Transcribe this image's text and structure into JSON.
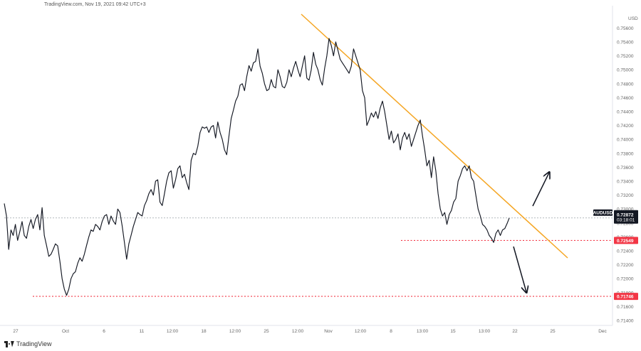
{
  "header": {
    "source_text": "TradingView.com, Nov 19, 2021 09:42 UTC+3"
  },
  "footer": {
    "brand": "TradingView"
  },
  "chart_data": {
    "type": "line",
    "symbol": "AUDUSD",
    "currency_label": "USD",
    "ylim": [
      0.714,
      0.7566
    ],
    "y_ticks": [
      "0.75600",
      "0.75400",
      "0.75200",
      "0.75000",
      "0.74800",
      "0.74600",
      "0.74400",
      "0.74200",
      "0.74000",
      "0.73800",
      "0.73600",
      "0.73400",
      "0.73200",
      "0.73000",
      "0.72800",
      "0.72600",
      "0.72400",
      "0.72200",
      "0.72000",
      "0.71800",
      "0.71600",
      "0.71400"
    ],
    "x_ticks": [
      "27",
      "Oct",
      "6",
      "11",
      "12:00",
      "18",
      "12:00",
      "25",
      "12:00",
      "Nov",
      "12:00",
      "8",
      "13:00",
      "15",
      "13:00",
      "22",
      "25",
      "Dec"
    ],
    "price_labels": [
      {
        "text": "AUDUSD",
        "color": "#131722"
      },
      {
        "text": "0.72872",
        "color": "#131722"
      },
      {
        "text": "03:18:01",
        "color": "#131722"
      },
      {
        "text": "0.72549",
        "color": "#f23645"
      },
      {
        "text": "0.71746",
        "color": "#f23645"
      }
    ],
    "levels": [
      {
        "value": 0.72872,
        "style": "dotted",
        "color": "#9aa0a6"
      },
      {
        "value": 0.72549,
        "style": "dotted",
        "color": "#f23645"
      },
      {
        "value": 0.71746,
        "style": "dotted",
        "color": "#f23645"
      }
    ],
    "trendline_color": "#f5a623",
    "series": [
      {
        "color": "#131722",
        "values": [
          0.7308,
          0.729,
          0.7242,
          0.727,
          0.7262,
          0.7278,
          0.7255,
          0.7268,
          0.7282,
          0.7262,
          0.7258,
          0.7275,
          0.7285,
          0.7272,
          0.7285,
          0.7292,
          0.727,
          0.7302,
          0.7262,
          0.7248,
          0.7232,
          0.7235,
          0.7242,
          0.725,
          0.7247,
          0.7225,
          0.72,
          0.7185,
          0.7176,
          0.7185,
          0.72,
          0.7207,
          0.721,
          0.7222,
          0.723,
          0.7225,
          0.7235,
          0.7248,
          0.726,
          0.727,
          0.7268,
          0.7278,
          0.7275,
          0.727,
          0.7282,
          0.729,
          0.7292,
          0.7278,
          0.729,
          0.7283,
          0.7278,
          0.73,
          0.7295,
          0.7276,
          0.7252,
          0.7228,
          0.725,
          0.7262,
          0.7275,
          0.7285,
          0.7295,
          0.7292,
          0.729,
          0.7305,
          0.7312,
          0.7322,
          0.7328,
          0.732,
          0.734,
          0.7342,
          0.731,
          0.7305,
          0.7322,
          0.734,
          0.7352,
          0.7355,
          0.733,
          0.7342,
          0.7358,
          0.7362,
          0.7345,
          0.735,
          0.7338,
          0.7328,
          0.737,
          0.738,
          0.7378,
          0.739,
          0.741,
          0.7418,
          0.7416,
          0.7418,
          0.741,
          0.7418,
          0.742,
          0.7402,
          0.7425,
          0.741,
          0.74,
          0.7385,
          0.7378,
          0.7405,
          0.743,
          0.7442,
          0.7455,
          0.7462,
          0.7478,
          0.748,
          0.747,
          0.749,
          0.7506,
          0.7498,
          0.751,
          0.7512,
          0.753,
          0.7505,
          0.7495,
          0.748,
          0.747,
          0.7472,
          0.7486,
          0.7476,
          0.7474,
          0.75,
          0.749,
          0.7476,
          0.7474,
          0.7482,
          0.75,
          0.749,
          0.7502,
          0.7512,
          0.75,
          0.749,
          0.7505,
          0.752,
          0.7488,
          0.7485,
          0.75,
          0.7525,
          0.7508,
          0.75,
          0.7486,
          0.7478,
          0.7502,
          0.752,
          0.7545,
          0.7535,
          0.752,
          0.754,
          0.7528,
          0.7515,
          0.751,
          0.7505,
          0.75,
          0.7495,
          0.7505,
          0.753,
          0.752,
          0.751,
          0.75,
          0.747,
          0.746,
          0.742,
          0.7428,
          0.7438,
          0.7432,
          0.744,
          0.743,
          0.7445,
          0.7455,
          0.744,
          0.742,
          0.74,
          0.7412,
          0.7395,
          0.74,
          0.7408,
          0.7385,
          0.7402,
          0.741,
          0.74,
          0.7408,
          0.739,
          0.74,
          0.741,
          0.742,
          0.7428,
          0.7405,
          0.7385,
          0.7362,
          0.737,
          0.7345,
          0.7375,
          0.7355,
          0.7322,
          0.73,
          0.729,
          0.7295,
          0.7278,
          0.7292,
          0.7298,
          0.731,
          0.7315,
          0.734,
          0.7348,
          0.7358,
          0.7362,
          0.7355,
          0.7362,
          0.7345,
          0.734,
          0.732,
          0.73,
          0.729,
          0.7278,
          0.7275,
          0.727,
          0.7262,
          0.7258,
          0.7252,
          0.7265,
          0.727,
          0.7262,
          0.727,
          0.7272,
          0.7279,
          0.7287
        ]
      }
    ],
    "annotations": [
      {
        "type": "arrow",
        "direction": "up"
      },
      {
        "type": "arrow",
        "direction": "down"
      }
    ]
  }
}
